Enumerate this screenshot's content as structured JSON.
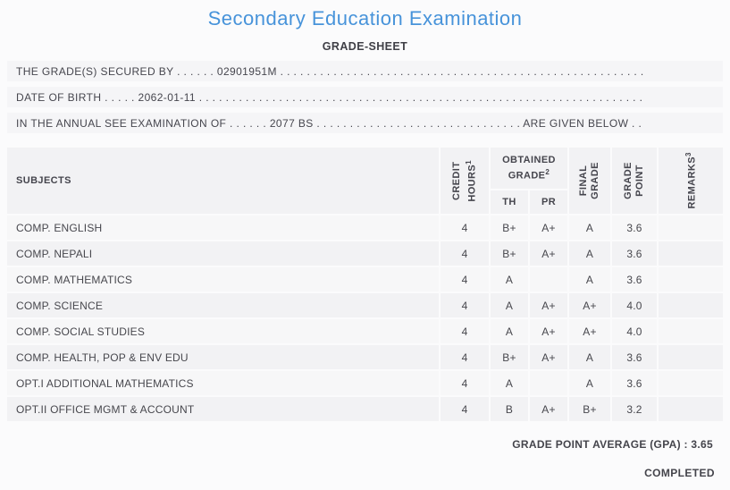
{
  "colors": {
    "title_blue": "#4793da",
    "text_dark": "#47474d",
    "row_bg": "#f5f5f7"
  },
  "page": {
    "title": "Secondary Education Examination",
    "subtitle": "GRADE-SHEET"
  },
  "info_lines": [
    {
      "prefix": "THE GRADE(S) SECURED BY",
      "dots1": ". . . . . .",
      "value": "02901951M",
      "dots2": ". . . . . . . . . . . . . . . . . . . . . . . . . . . . . . . . . . . . . . . . . . . . . . . . . . . . . . . . . . . .",
      "suffix": ""
    },
    {
      "prefix": "DATE OF BIRTH",
      "dots1": ". . . . .",
      "value": "2062-01-11",
      "dots2": ". . . . . . . . . . . . . . . . . . . . . . . . . . . . . . . . . . . . . . . . . . . . . . . . . . . . . . . . . . . . . . . . . . . . . .",
      "suffix": ""
    },
    {
      "prefix": "IN THE ANNUAL SEE EXAMINATION OF",
      "dots1": ". . . . . .",
      "value": "2077 BS",
      "dots2": ". . . . . . . . . . . . . . . . . . . . . . . . . . . . . . .",
      "suffix": "ARE GIVEN BELOW . . ."
    }
  ],
  "table": {
    "columns": {
      "subjects": "SUBJECTS",
      "credit_hours_line1": "CREDIT",
      "credit_hours_line2": "HOURS",
      "credit_hours_sup": "1",
      "obtained_grade_line1": "OBTAINED",
      "obtained_grade_line2": "GRADE",
      "obtained_grade_sup": "2",
      "th": "TH",
      "pr": "PR",
      "final_grade_line1": "FINAL",
      "final_grade_line2": "GRADE",
      "grade_point_line1": "GRADE",
      "grade_point_line2": "POINT",
      "remarks": "REMARKS",
      "remarks_sup": "3"
    },
    "rows": [
      {
        "subject": "COMP. ENGLISH",
        "credit_hours": "4",
        "th": "B+",
        "pr": "A+",
        "final_grade": "A",
        "grade_point": "3.6",
        "remarks": ""
      },
      {
        "subject": "COMP. NEPALI",
        "credit_hours": "4",
        "th": "B+",
        "pr": "A+",
        "final_grade": "A",
        "grade_point": "3.6",
        "remarks": ""
      },
      {
        "subject": "COMP. MATHEMATICS",
        "credit_hours": "4",
        "th": "A",
        "pr": "",
        "final_grade": "A",
        "grade_point": "3.6",
        "remarks": ""
      },
      {
        "subject": "COMP. SCIENCE",
        "credit_hours": "4",
        "th": "A",
        "pr": "A+",
        "final_grade": "A+",
        "grade_point": "4.0",
        "remarks": ""
      },
      {
        "subject": "COMP. SOCIAL STUDIES",
        "credit_hours": "4",
        "th": "A",
        "pr": "A+",
        "final_grade": "A+",
        "grade_point": "4.0",
        "remarks": ""
      },
      {
        "subject": "COMP. HEALTH, POP & ENV EDU",
        "credit_hours": "4",
        "th": "B+",
        "pr": "A+",
        "final_grade": "A",
        "grade_point": "3.6",
        "remarks": ""
      },
      {
        "subject": "OPT.I ADDITIONAL MATHEMATICS",
        "credit_hours": "4",
        "th": "A",
        "pr": "",
        "final_grade": "A",
        "grade_point": "3.6",
        "remarks": ""
      },
      {
        "subject": "OPT.II OFFICE MGMT & ACCOUNT",
        "credit_hours": "4",
        "th": "B",
        "pr": "A+",
        "final_grade": "B+",
        "grade_point": "3.2",
        "remarks": ""
      }
    ]
  },
  "footer": {
    "gpa_text": "GRADE POINT AVERAGE (GPA) : 3.65",
    "status": "COMPLETED"
  }
}
